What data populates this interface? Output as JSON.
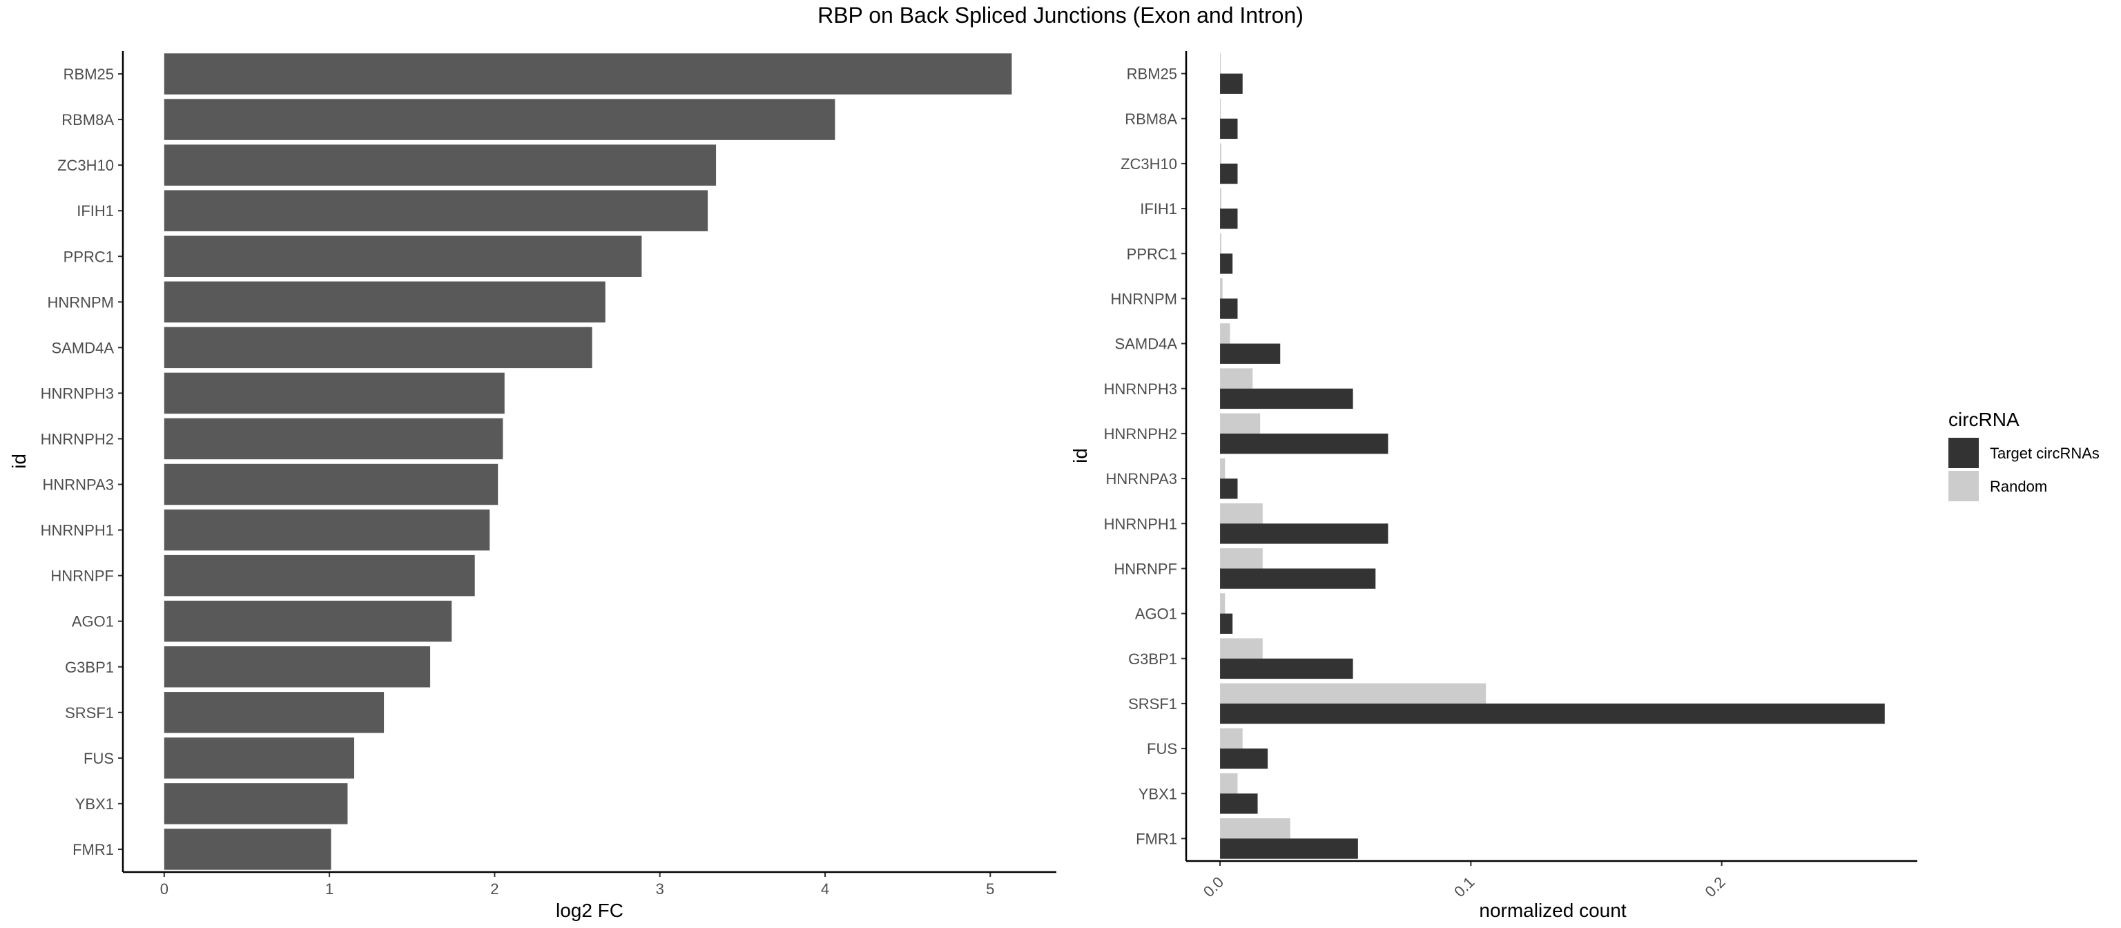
{
  "title": "RBP on Back Spliced Junctions (Exon and Intron)",
  "chart_data": [
    {
      "type": "bar",
      "orientation": "horizontal",
      "categories": [
        "RBM25",
        "RBM8A",
        "ZC3H10",
        "IFIH1",
        "PPRC1",
        "HNRNPM",
        "SAMD4A",
        "HNRNPH3",
        "HNRNPH2",
        "HNRNPA3",
        "HNRNPH1",
        "HNRNPF",
        "AGO1",
        "G3BP1",
        "SRSF1",
        "FUS",
        "YBX1",
        "FMR1"
      ],
      "values": [
        5.13,
        4.06,
        3.34,
        3.29,
        2.89,
        2.67,
        2.59,
        2.06,
        2.05,
        2.02,
        1.97,
        1.88,
        1.74,
        1.61,
        1.33,
        1.15,
        1.11,
        1.01
      ],
      "xlabel": "log2 FC",
      "ylabel": "id",
      "xlim": [
        -0.25,
        5.4
      ],
      "xticks": [
        0,
        1,
        2,
        3,
        4,
        5
      ],
      "xtick_labels": [
        "0",
        "1",
        "2",
        "3",
        "4",
        "5"
      ],
      "bar_color": "#595959",
      "grid": false
    },
    {
      "type": "bar",
      "orientation": "horizontal",
      "grouped": true,
      "categories": [
        "RBM25",
        "RBM8A",
        "ZC3H10",
        "IFIH1",
        "PPRC1",
        "HNRNPM",
        "SAMD4A",
        "HNRNPH3",
        "HNRNPH2",
        "HNRNPA3",
        "HNRNPH1",
        "HNRNPF",
        "AGO1",
        "G3BP1",
        "SRSF1",
        "FUS",
        "YBX1",
        "FMR1"
      ],
      "series": [
        {
          "name": "Target circRNAs",
          "color": "#333333",
          "values": [
            0.009,
            0.007,
            0.007,
            0.007,
            0.005,
            0.007,
            0.024,
            0.053,
            0.067,
            0.007,
            0.067,
            0.062,
            0.005,
            0.053,
            0.265,
            0.019,
            0.015,
            0.055
          ]
        },
        {
          "name": "Random",
          "color": "#cccccc",
          "values": [
            0.0003,
            0.0003,
            0.0005,
            0.0005,
            0.0005,
            0.001,
            0.004,
            0.013,
            0.016,
            0.002,
            0.017,
            0.017,
            0.002,
            0.017,
            0.106,
            0.009,
            0.007,
            0.028
          ]
        }
      ],
      "xlabel": "normalized count",
      "ylabel": "id",
      "xlim": [
        -0.0135,
        0.278
      ],
      "xticks": [
        0.0,
        0.1,
        0.2
      ],
      "xtick_labels": [
        "0.0",
        "0.1",
        "0.2"
      ],
      "legend": {
        "title": "circRNA",
        "position": "right"
      },
      "grid": false
    }
  ]
}
